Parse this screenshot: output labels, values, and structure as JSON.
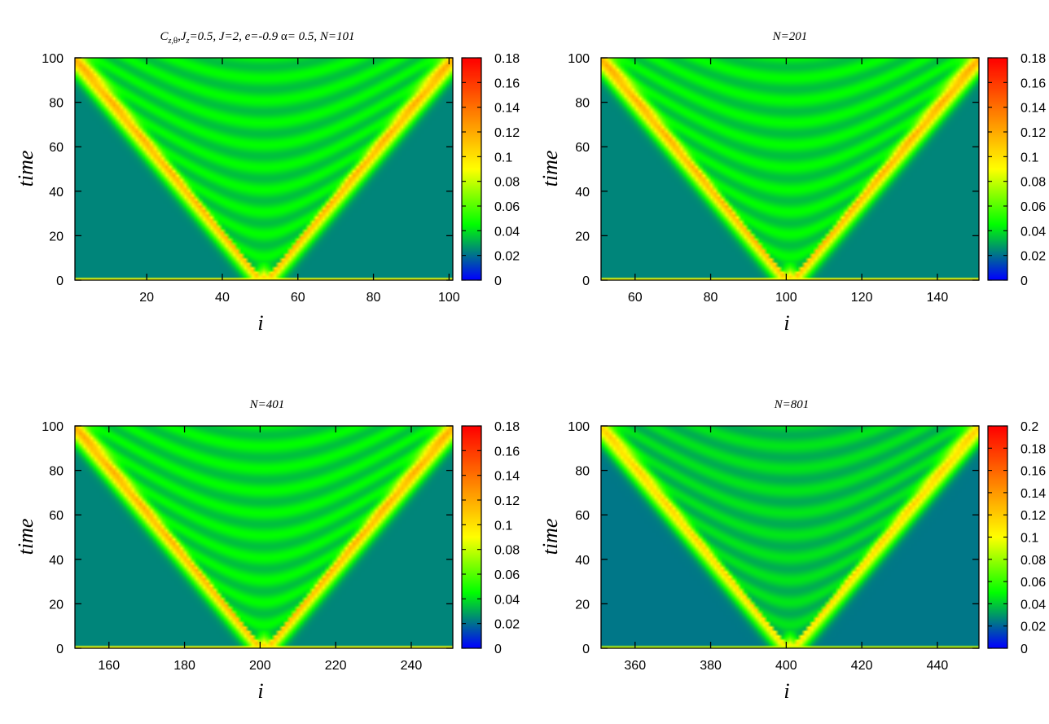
{
  "colormap": [
    "#0000ff",
    "#00ff00",
    "#ffff00",
    "#ff8000",
    "#ff0000"
  ],
  "chart_data": [
    {
      "type": "heatmap",
      "title_parts": {
        "c": "C",
        "sub1": "z,",
        "theta": "θ",
        "jz": ",J",
        "sub2": "z",
        "rest1": "=0.5,  J=2, e=-0.9 ",
        "alpha": "α",
        "rest2": "= 0.5, N=101"
      },
      "xlabel": "i",
      "ylabel": "time",
      "xlim": [
        1,
        101
      ],
      "ylim": [
        0,
        100
      ],
      "xticks": [
        20,
        40,
        60,
        80,
        100
      ],
      "yticks": [
        0,
        20,
        40,
        60,
        80,
        100
      ],
      "center": 51,
      "velocity": 0.5,
      "sites": 101,
      "cbar_ticks": [
        "0",
        "0.02",
        "0.04",
        "0.06",
        "0.08",
        "0.1",
        "0.12",
        "0.14",
        "0.16",
        "0.18"
      ],
      "cbar_max": 0.18
    },
    {
      "type": "heatmap",
      "title": "N=201",
      "xlabel": "i",
      "ylabel": "time",
      "xlim": [
        51,
        151
      ],
      "ylim": [
        0,
        100
      ],
      "xticks": [
        60,
        80,
        100,
        120,
        140
      ],
      "yticks": [
        0,
        20,
        40,
        60,
        80,
        100
      ],
      "center": 101,
      "velocity": 0.5,
      "sites": 201,
      "cbar_ticks": [
        "0",
        "0.02",
        "0.04",
        "0.06",
        "0.08",
        "0.1",
        "0.12",
        "0.14",
        "0.16",
        "0.18"
      ],
      "cbar_max": 0.18
    },
    {
      "type": "heatmap",
      "title": "N=401",
      "xlabel": "i",
      "ylabel": "time",
      "xlim": [
        151,
        251
      ],
      "ylim": [
        0,
        100
      ],
      "xticks": [
        160,
        180,
        200,
        220,
        240
      ],
      "yticks": [
        0,
        20,
        40,
        60,
        80,
        100
      ],
      "center": 201,
      "velocity": 0.5,
      "sites": 401,
      "cbar_ticks": [
        "0",
        "0.02",
        "0.04",
        "0.06",
        "0.08",
        "0.1",
        "0.12",
        "0.14",
        "0.16",
        "0.18"
      ],
      "cbar_max": 0.18
    },
    {
      "type": "heatmap",
      "title": "N=801",
      "xlabel": "i",
      "ylabel": "time",
      "xlim": [
        351,
        451
      ],
      "ylim": [
        0,
        100
      ],
      "xticks": [
        360,
        380,
        400,
        420,
        440
      ],
      "yticks": [
        0,
        20,
        40,
        60,
        80,
        100
      ],
      "center": 401,
      "velocity": 0.5,
      "sites": 801,
      "cbar_ticks": [
        "0",
        "0.02",
        "0.04",
        "0.06",
        "0.08",
        "0.1",
        "0.12",
        "0.14",
        "0.16",
        "0.18",
        "0.2"
      ],
      "cbar_max": 0.2
    }
  ]
}
